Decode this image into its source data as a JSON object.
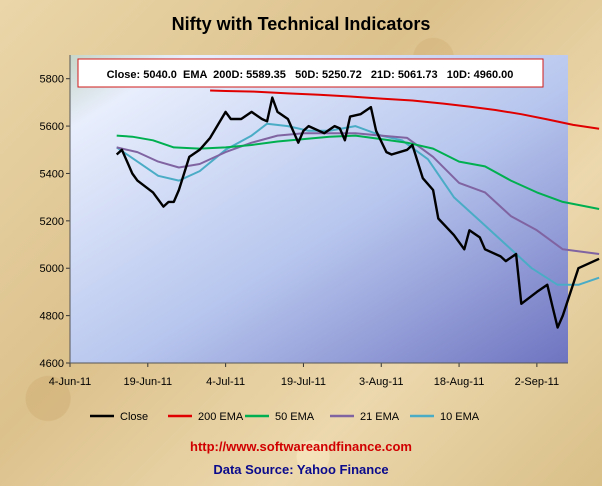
{
  "chart_data": {
    "type": "line",
    "title": "Nifty with Technical Indicators",
    "annotation": "Close: 5040.0  EMA  200D: 5589.35   50D: 5250.72   21D: 5061.73   10D: 4960.00",
    "x_ticks": [
      "4-Jun-11",
      "19-Jun-11",
      "4-Jul-11",
      "19-Jul-11",
      "3-Aug-11",
      "18-Aug-11",
      "2-Sep-11"
    ],
    "xlim": [
      "2011-06-04",
      "2011-09-08"
    ],
    "ylim": [
      4600,
      5900
    ],
    "y_ticks": [
      4600,
      4800,
      5000,
      5200,
      5400,
      5600,
      5800
    ],
    "legend_position": "bottom",
    "series": [
      {
        "name": "Close",
        "color": "#000000",
        "points": [
          [
            "2011-06-13",
            5480
          ],
          [
            "2011-06-14",
            5500
          ],
          [
            "2011-06-16",
            5400
          ],
          [
            "2011-06-17",
            5370
          ],
          [
            "2011-06-20",
            5320
          ],
          [
            "2011-06-22",
            5260
          ],
          [
            "2011-06-23",
            5280
          ],
          [
            "2011-06-24",
            5280
          ],
          [
            "2011-06-25",
            5330
          ],
          [
            "2011-06-27",
            5470
          ],
          [
            "2011-06-29",
            5500
          ],
          [
            "2011-07-01",
            5550
          ],
          [
            "2011-07-04",
            5660
          ],
          [
            "2011-07-05",
            5630
          ],
          [
            "2011-07-07",
            5630
          ],
          [
            "2011-07-09",
            5660
          ],
          [
            "2011-07-11",
            5630
          ],
          [
            "2011-07-12",
            5620
          ],
          [
            "2011-07-13",
            5720
          ],
          [
            "2011-07-14",
            5660
          ],
          [
            "2011-07-16",
            5630
          ],
          [
            "2011-07-18",
            5530
          ],
          [
            "2011-07-19",
            5580
          ],
          [
            "2011-07-20",
            5600
          ],
          [
            "2011-07-23",
            5570
          ],
          [
            "2011-07-25",
            5600
          ],
          [
            "2011-07-26",
            5590
          ],
          [
            "2011-07-27",
            5540
          ],
          [
            "2011-07-28",
            5640
          ],
          [
            "2011-07-30",
            5650
          ],
          [
            "2011-08-01",
            5680
          ],
          [
            "2011-08-02",
            5580
          ],
          [
            "2011-08-04",
            5490
          ],
          [
            "2011-08-05",
            5480
          ],
          [
            "2011-08-08",
            5500
          ],
          [
            "2011-08-09",
            5520
          ],
          [
            "2011-08-11",
            5380
          ],
          [
            "2011-08-13",
            5330
          ],
          [
            "2011-08-14",
            5210
          ],
          [
            "2011-08-17",
            5140
          ],
          [
            "2011-08-19",
            5080
          ],
          [
            "2011-08-20",
            5160
          ],
          [
            "2011-08-22",
            5130
          ],
          [
            "2011-08-23",
            5080
          ],
          [
            "2011-08-26",
            5050
          ],
          [
            "2011-08-27",
            5030
          ],
          [
            "2011-08-29",
            5060
          ],
          [
            "2011-08-30",
            4850
          ],
          [
            "2011-09-02",
            4900
          ],
          [
            "2011-09-04",
            4930
          ],
          [
            "2011-09-05",
            4840
          ],
          [
            "2011-09-06",
            4750
          ],
          [
            "2011-09-07",
            4800
          ],
          [
            "2011-09-10",
            5000
          ],
          [
            "2011-09-14",
            5040
          ]
        ]
      },
      {
        "name": "200 EMA",
        "color": "#e00000",
        "points": [
          [
            "2011-07-01",
            5750
          ],
          [
            "2011-07-04",
            5748
          ],
          [
            "2011-07-10",
            5745
          ],
          [
            "2011-07-16",
            5738
          ],
          [
            "2011-07-22",
            5732
          ],
          [
            "2011-07-28",
            5725
          ],
          [
            "2011-08-03",
            5716
          ],
          [
            "2011-08-09",
            5708
          ],
          [
            "2011-08-15",
            5695
          ],
          [
            "2011-08-20",
            5682
          ],
          [
            "2011-08-25",
            5668
          ],
          [
            "2011-08-30",
            5650
          ],
          [
            "2011-09-04",
            5628
          ],
          [
            "2011-09-09",
            5605
          ],
          [
            "2011-09-14",
            5589
          ]
        ]
      },
      {
        "name": "50 EMA",
        "color": "#00b050",
        "points": [
          [
            "2011-06-13",
            5560
          ],
          [
            "2011-06-16",
            5555
          ],
          [
            "2011-06-20",
            5540
          ],
          [
            "2011-06-24",
            5510
          ],
          [
            "2011-06-29",
            5505
          ],
          [
            "2011-07-04",
            5510
          ],
          [
            "2011-07-09",
            5520
          ],
          [
            "2011-07-14",
            5535
          ],
          [
            "2011-07-19",
            5545
          ],
          [
            "2011-07-24",
            5555
          ],
          [
            "2011-07-29",
            5560
          ],
          [
            "2011-08-03",
            5545
          ],
          [
            "2011-08-08",
            5530
          ],
          [
            "2011-08-13",
            5505
          ],
          [
            "2011-08-18",
            5450
          ],
          [
            "2011-08-23",
            5430
          ],
          [
            "2011-08-28",
            5370
          ],
          [
            "2011-09-02",
            5320
          ],
          [
            "2011-09-07",
            5280
          ],
          [
            "2011-09-14",
            5250
          ]
        ]
      },
      {
        "name": "21 EMA",
        "color": "#8064a2",
        "points": [
          [
            "2011-06-13",
            5510
          ],
          [
            "2011-06-17",
            5490
          ],
          [
            "2011-06-21",
            5450
          ],
          [
            "2011-06-25",
            5425
          ],
          [
            "2011-06-29",
            5440
          ],
          [
            "2011-07-04",
            5490
          ],
          [
            "2011-07-09",
            5530
          ],
          [
            "2011-07-14",
            5560
          ],
          [
            "2011-07-19",
            5570
          ],
          [
            "2011-07-24",
            5570
          ],
          [
            "2011-07-29",
            5570
          ],
          [
            "2011-08-03",
            5560
          ],
          [
            "2011-08-08",
            5550
          ],
          [
            "2011-08-13",
            5470
          ],
          [
            "2011-08-18",
            5360
          ],
          [
            "2011-08-23",
            5320
          ],
          [
            "2011-08-28",
            5220
          ],
          [
            "2011-09-02",
            5160
          ],
          [
            "2011-09-07",
            5080
          ],
          [
            "2011-09-14",
            5060
          ]
        ]
      },
      {
        "name": "10 EMA",
        "color": "#4bacc6",
        "points": [
          [
            "2011-06-13",
            5510
          ],
          [
            "2011-06-17",
            5450
          ],
          [
            "2011-06-21",
            5390
          ],
          [
            "2011-06-25",
            5370
          ],
          [
            "2011-06-29",
            5410
          ],
          [
            "2011-07-04",
            5500
          ],
          [
            "2011-07-09",
            5560
          ],
          [
            "2011-07-12",
            5610
          ],
          [
            "2011-07-16",
            5600
          ],
          [
            "2011-07-20",
            5580
          ],
          [
            "2011-07-24",
            5580
          ],
          [
            "2011-07-29",
            5600
          ],
          [
            "2011-08-03",
            5560
          ],
          [
            "2011-08-07",
            5540
          ],
          [
            "2011-08-12",
            5460
          ],
          [
            "2011-08-17",
            5300
          ],
          [
            "2011-08-22",
            5200
          ],
          [
            "2011-08-27",
            5100
          ],
          [
            "2011-09-01",
            5000
          ],
          [
            "2011-09-06",
            4930
          ],
          [
            "2011-09-10",
            4930
          ],
          [
            "2011-09-14",
            4960
          ]
        ]
      }
    ]
  },
  "footer": {
    "url": "http://www.softwareandfinance.com",
    "source": "Data Source: Yahoo Finance"
  }
}
